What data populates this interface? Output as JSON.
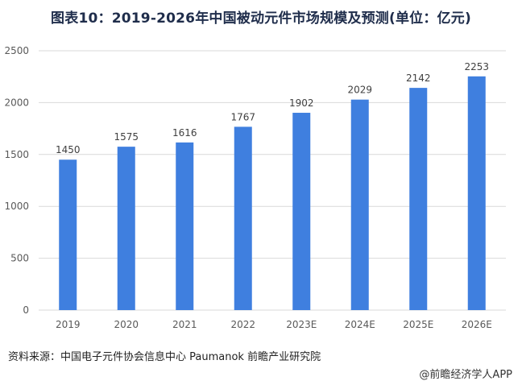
{
  "title": "图表10：2019-2026年中国被动元件市场规模及预测(单位：亿元)",
  "source": "资料来源：中国电子元件协会信息中心 Paumanok 前瞻产业研究院",
  "brand": "@前瞻经济学人APP",
  "chart_data": {
    "type": "bar",
    "title": "图表10：2019-2026年中国被动元件市场规模及预测(单位：亿元)",
    "categories": [
      "2019",
      "2020",
      "2021",
      "2022",
      "2023E",
      "2024E",
      "2025E",
      "2026E"
    ],
    "values": [
      1450,
      1575,
      1616,
      1767,
      1902,
      2029,
      2142,
      2253
    ],
    "ylim": [
      0,
      2500
    ],
    "yticks": [
      0,
      500,
      1000,
      1500,
      2000,
      2500
    ],
    "grid": true,
    "legend": "none",
    "bar_color": "#3f7fdf",
    "grid_color": "#d9d9d9"
  }
}
